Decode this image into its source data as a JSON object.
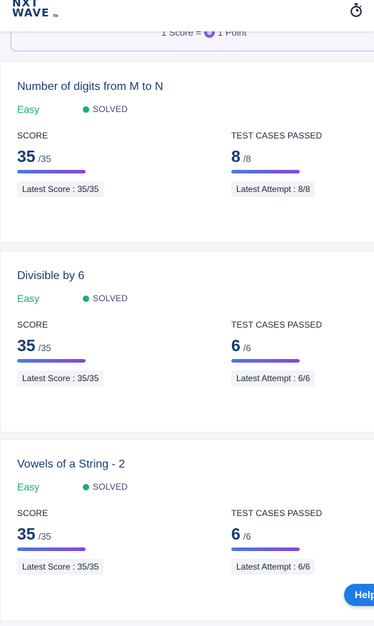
{
  "header": {
    "logo_line1": "NXT",
    "logo_line2": "WAVE",
    "logo_tm": "TM",
    "timer_icon": "stopwatch-icon"
  },
  "score_strip": {
    "left_text": "1 Score =",
    "right_text": "1 Point",
    "coin_icon": "coin-icon"
  },
  "problems": [
    {
      "title": "Number of digits from M to N",
      "difficulty": "Easy",
      "status": "SOLVED",
      "score_label": "SCORE",
      "score": "35",
      "score_total": "/35",
      "score_fraction": 1.0,
      "latest_score": "Latest Score : 35/35",
      "tests_label": "TEST CASES PASSED",
      "tests": "8",
      "tests_total": "/8",
      "tests_fraction": 1.0,
      "latest_attempt": "Latest Attempt : 8/8"
    },
    {
      "title": "Divisible by 6",
      "difficulty": "Easy",
      "status": "SOLVED",
      "score_label": "SCORE",
      "score": "35",
      "score_total": "/35",
      "score_fraction": 1.0,
      "latest_score": "Latest Score : 35/35",
      "tests_label": "TEST CASES PASSED",
      "tests": "6",
      "tests_total": "/6",
      "tests_fraction": 1.0,
      "latest_attempt": "Latest Attempt : 6/6"
    },
    {
      "title": "Vowels of a String - 2",
      "difficulty": "Easy",
      "status": "SOLVED",
      "score_label": "SCORE",
      "score": "35",
      "score_total": "/35",
      "score_fraction": 1.0,
      "latest_score": "Latest Score : 35/35",
      "tests_label": "TEST CASES PASSED",
      "tests": "6",
      "tests_total": "/6",
      "tests_fraction": 1.0,
      "latest_attempt": "Latest Attempt : 6/6"
    }
  ],
  "help_button": "Help",
  "colors": {
    "brand_navy": "#183b70",
    "easy_green": "#20a86b",
    "solved_dot": "#16b36a",
    "progress_start": "#4a7bdc",
    "progress_end": "#8a45d8",
    "help_blue": "#1e7ce8"
  }
}
